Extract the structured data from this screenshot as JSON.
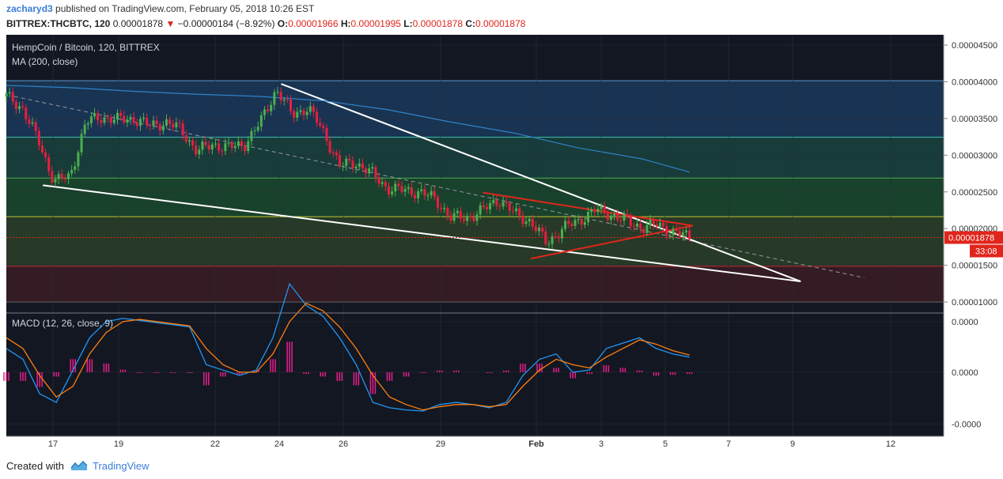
{
  "header": {
    "author": "zacharyd3",
    "published_text": "published on TradingView.com, February 05, 2018 10:26 EST",
    "symbol": "BITTREX:THCBTC, 120",
    "last": "0.00001878",
    "change": "−0.00000184 (−8.92%)",
    "o_label": "O:",
    "o_value": "0.00001966",
    "h_label": "H:",
    "h_value": "0.00001995",
    "l_label": "L:",
    "l_value": "0.00001878",
    "c_label": "C:",
    "c_value": "0.00001878"
  },
  "footer": {
    "created_with": "Created with",
    "brand": "TradingView"
  },
  "colors": {
    "bull": "#4caf50",
    "bear": "#e91e3f",
    "ma": "#2f84c9",
    "macd": "#2196f3",
    "signal": "#ff7f0e",
    "hist": "#e91e8c",
    "trendline": "#ffffff",
    "triangle": "#e0261c"
  },
  "chart_data": [
    {
      "type": "candlestick",
      "title": "HempCoin / Bitcoin, 120, BITTREX",
      "indicator": "MA (200, close)",
      "x_ticks": [
        "17",
        "19",
        "22",
        "24",
        "26",
        "29",
        "Feb",
        "3",
        "5",
        "7",
        "9",
        "12"
      ],
      "y_ticks": [
        "0.00004500",
        "0.00004000",
        "0.00003500",
        "0.00003000",
        "0.00002500",
        "0.00002000",
        "0.00001500",
        "0.00001000"
      ],
      "ylim": [
        8.5e-06,
        4.64e-05
      ],
      "last_price_label": "0.00001878",
      "countdown_label": "33:08",
      "price_path": [
        [
          3.8e-05,
          0
        ],
        [
          3.65e-05,
          1
        ],
        [
          3.2e-05,
          2
        ],
        [
          2.65e-05,
          3
        ],
        [
          2.7e-05,
          4
        ],
        [
          3.45e-05,
          5
        ],
        [
          3.52e-05,
          6
        ],
        [
          3.48e-05,
          7
        ],
        [
          3.5e-05,
          8
        ],
        [
          3.4e-05,
          9
        ],
        [
          3.45e-05,
          10
        ],
        [
          3.35e-05,
          11
        ],
        [
          3.05e-05,
          12
        ],
        [
          3.15e-05,
          13
        ],
        [
          3.1e-05,
          14
        ],
        [
          3.15e-05,
          15
        ],
        [
          3.45e-05,
          16
        ],
        [
          3.9e-05,
          17
        ],
        [
          3.55e-05,
          18
        ],
        [
          3.65e-05,
          19
        ],
        [
          3.3e-05,
          20
        ],
        [
          2.85e-05,
          21
        ],
        [
          2.9e-05,
          22
        ],
        [
          2.75e-05,
          23
        ],
        [
          2.55e-05,
          24
        ],
        [
          2.52e-05,
          25
        ],
        [
          2.5e-05,
          26
        ],
        [
          2.4e-05,
          27
        ],
        [
          2.15e-05,
          28
        ],
        [
          2.15e-05,
          29
        ],
        [
          2.25e-05,
          30
        ],
        [
          2.4e-05,
          31
        ],
        [
          2.2e-05,
          32
        ],
        [
          2.1e-05,
          33
        ],
        [
          1.8e-05,
          34
        ],
        [
          2e-05,
          35
        ],
        [
          2.1e-05,
          36
        ],
        [
          2.25e-05,
          37
        ],
        [
          2.2e-05,
          38
        ],
        [
          2.1e-05,
          39
        ],
        [
          2.02e-05,
          40
        ],
        [
          2.05e-05,
          41
        ],
        [
          1.95e-05,
          42
        ],
        [
          1.88e-05,
          43
        ]
      ],
      "ma_path": [
        [
          3.95e-05,
          0
        ],
        [
          3.92e-05,
          4
        ],
        [
          3.87e-05,
          8
        ],
        [
          3.83e-05,
          12
        ],
        [
          3.8e-05,
          16
        ],
        [
          3.74e-05,
          20
        ],
        [
          3.62e-05,
          24
        ],
        [
          3.45e-05,
          28
        ],
        [
          3.3e-05,
          32
        ],
        [
          3.1e-05,
          36
        ],
        [
          2.95e-05,
          40
        ],
        [
          2.77e-05,
          43
        ]
      ],
      "trendline_upper": [
        [
          3.97e-05,
          17.3
        ],
        [
          1.28e-05,
          50
        ]
      ],
      "trendline_lower": [
        [
          2.59e-05,
          2.3
        ],
        [
          1.28e-05,
          50
        ]
      ],
      "trendline_mid": [
        [
          3.8e-05,
          0.5
        ],
        [
          1.33e-05,
          54
        ]
      ],
      "triangle_points": [
        [
          2.49e-05,
          30
        ],
        [
          2.04e-05,
          43.2
        ],
        [
          1.59e-05,
          33
        ]
      ],
      "fib_levels": [
        4.014e-05,
        3.244e-05,
        2.689e-05,
        2.162e-05,
        1.487e-05,
        1e-05
      ]
    },
    {
      "type": "line",
      "title": "MACD (12, 26, close, 9)",
      "y_ticks": [
        "0.0000",
        "0.0000",
        "-0.0000"
      ],
      "ylim": [
        -1.0,
        0.1
      ],
      "macd": [
        -0.2,
        -0.3,
        -0.62,
        -0.7,
        -0.4,
        -0.1,
        0.05,
        0.08,
        0.06,
        0.04,
        0.02,
        0.0,
        -0.35,
        -0.4,
        -0.45,
        -0.4,
        -0.1,
        0.4,
        0.2,
        0.1,
        -0.1,
        -0.35,
        -0.7,
        -0.75,
        -0.77,
        -0.78,
        -0.72,
        -0.7,
        -0.72,
        -0.75,
        -0.7,
        -0.45,
        -0.3,
        -0.25,
        -0.42,
        -0.4,
        -0.2,
        -0.15,
        -0.1,
        -0.2,
        -0.25,
        -0.28
      ],
      "signal": [
        -0.1,
        -0.2,
        -0.45,
        -0.65,
        -0.55,
        -0.25,
        -0.05,
        0.05,
        0.07,
        0.05,
        0.03,
        0.01,
        -0.2,
        -0.35,
        -0.42,
        -0.42,
        -0.25,
        0.05,
        0.22,
        0.15,
        0.0,
        -0.2,
        -0.45,
        -0.65,
        -0.72,
        -0.77,
        -0.74,
        -0.72,
        -0.72,
        -0.74,
        -0.72,
        -0.55,
        -0.4,
        -0.3,
        -0.35,
        -0.38,
        -0.28,
        -0.2,
        -0.12,
        -0.16,
        -0.22,
        -0.26
      ]
    }
  ]
}
